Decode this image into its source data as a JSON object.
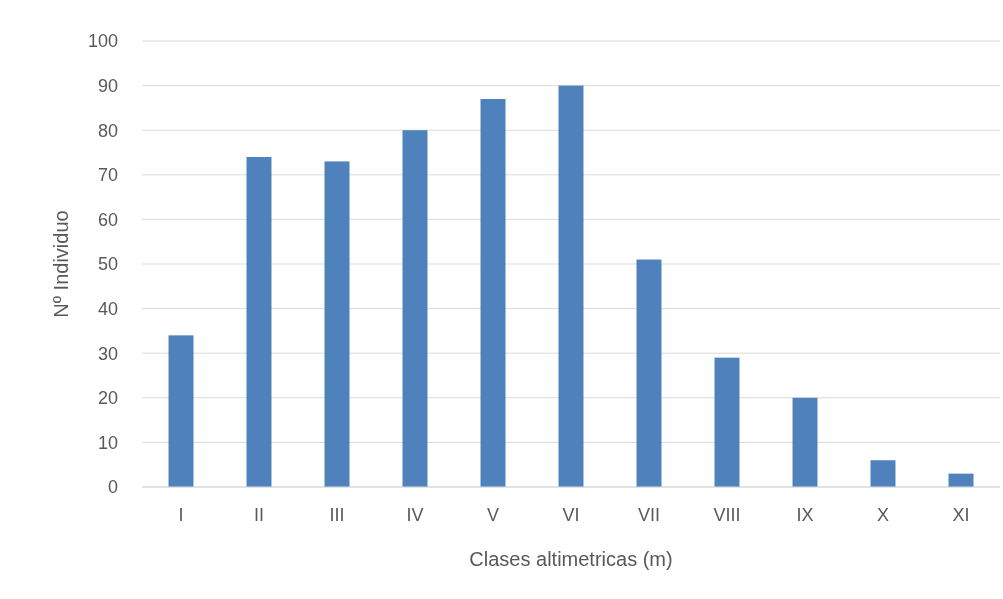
{
  "chart_data": {
    "type": "bar",
    "xlabel": "Clases altimetricas (m)",
    "ylabel": "Nº Individuo",
    "categories": [
      "I",
      "II",
      "III",
      "IV",
      "V",
      "VI",
      "VII",
      "VIII",
      "IX",
      "X",
      "XI"
    ],
    "values": [
      34,
      74,
      73,
      80,
      87,
      90,
      51,
      29,
      20,
      6,
      3
    ],
    "color": "#4f81bd",
    "ylim": [
      0,
      100
    ],
    "yticks": [
      0,
      10,
      20,
      30,
      40,
      50,
      60,
      70,
      80,
      90,
      100
    ],
    "grid": "y"
  }
}
